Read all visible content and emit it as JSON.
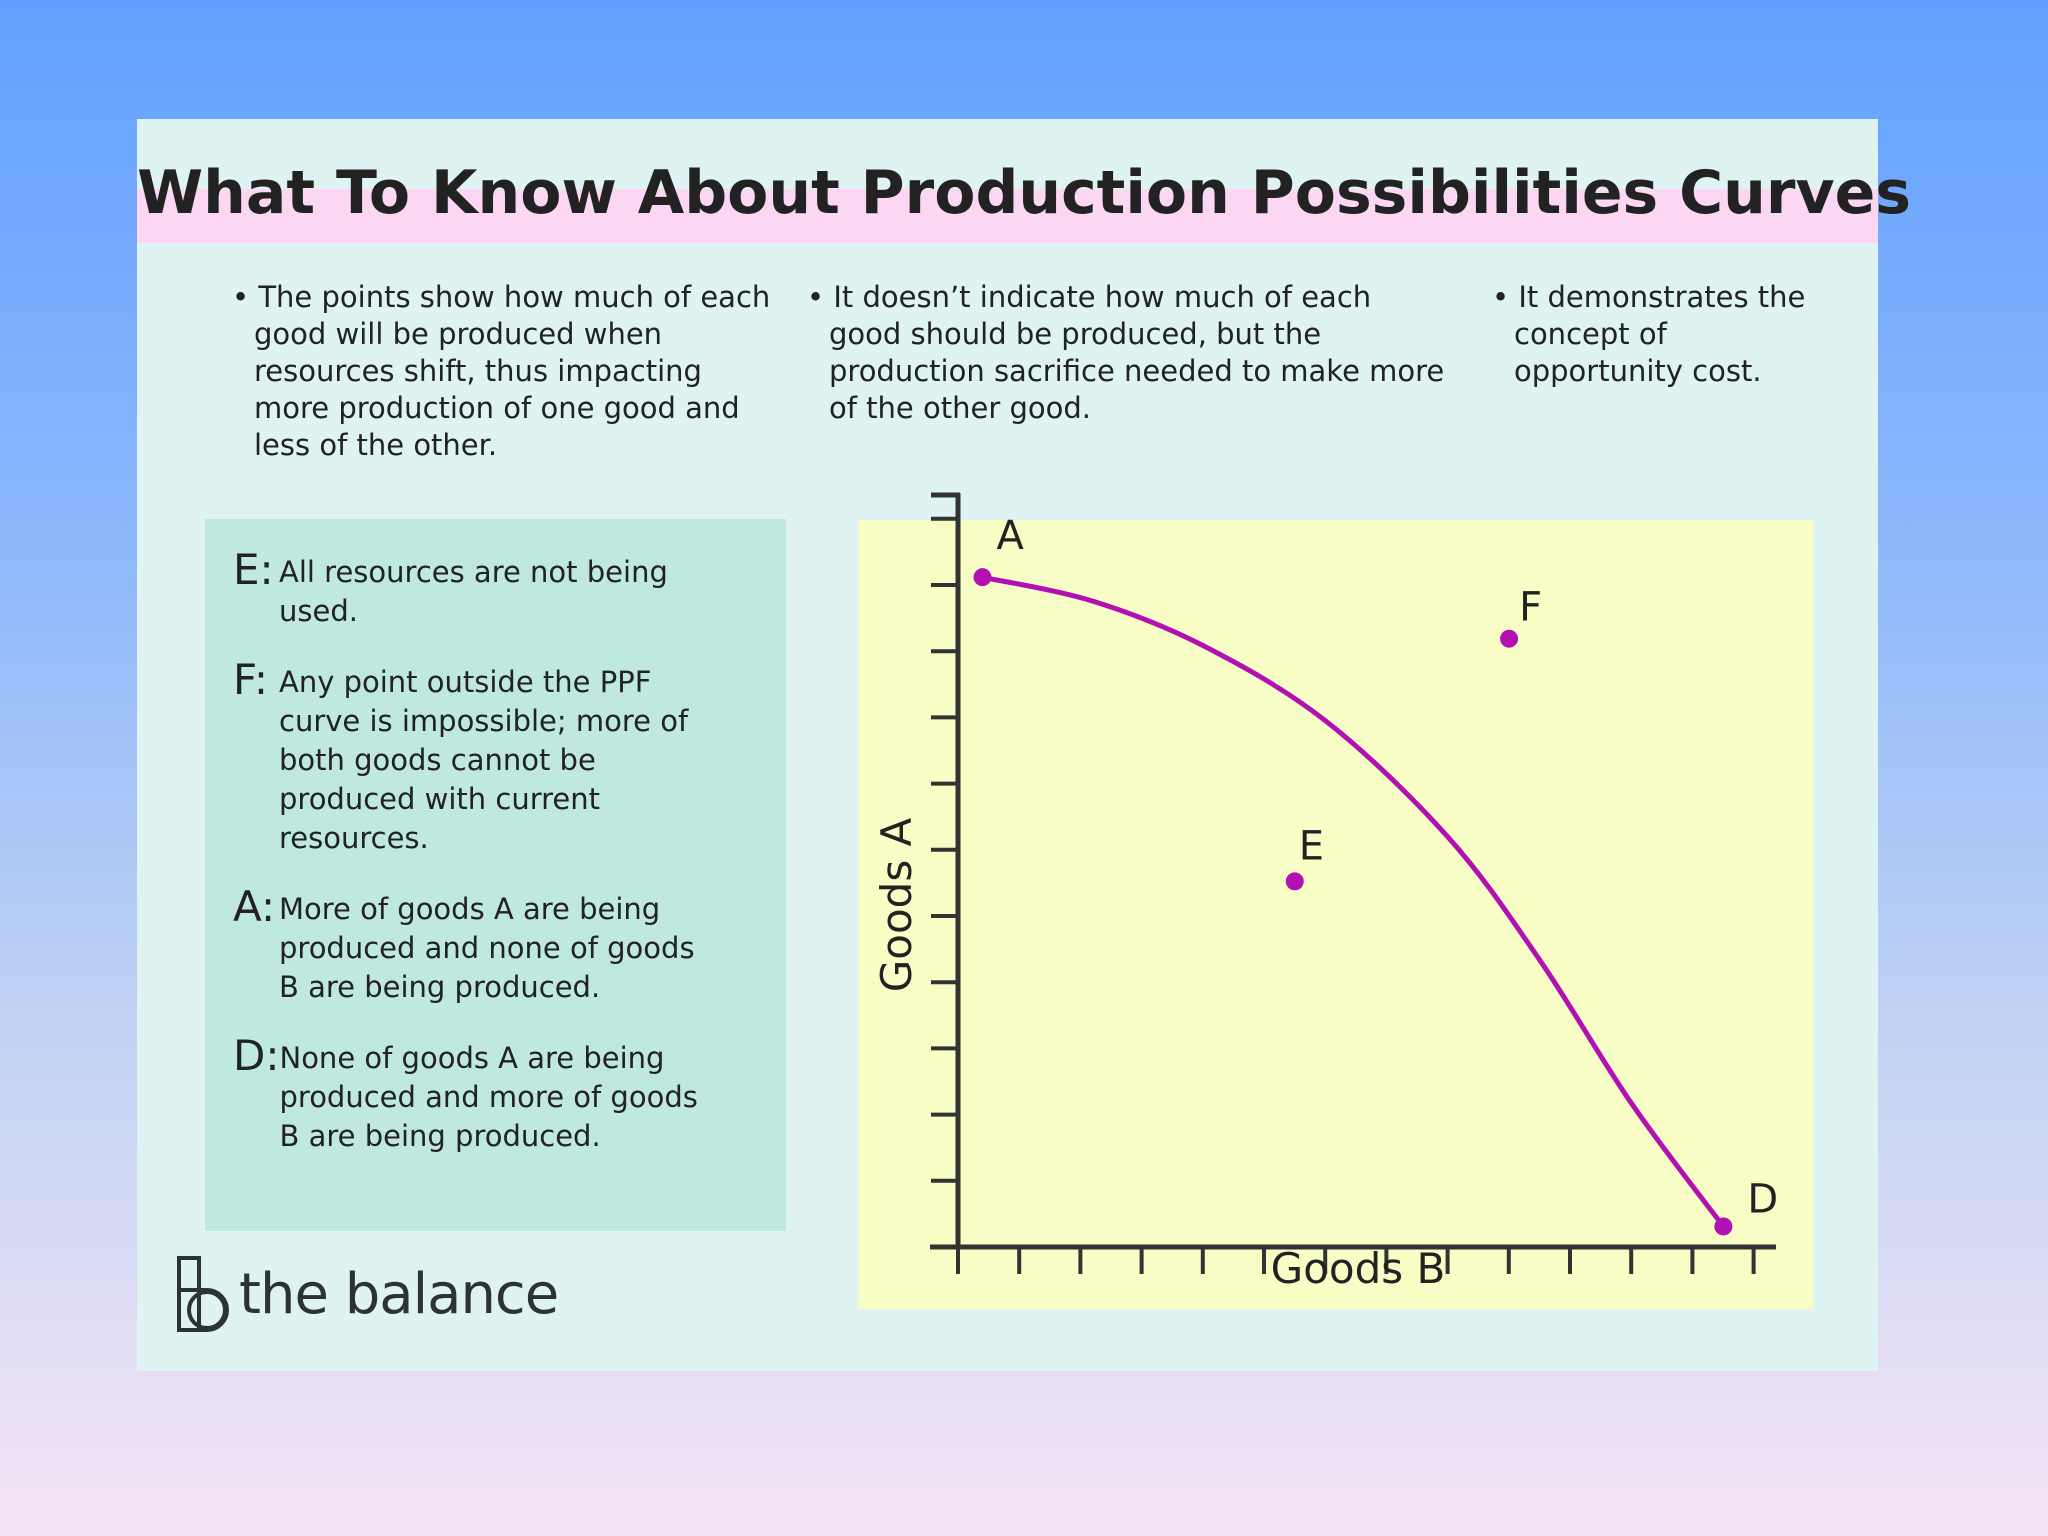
{
  "title": "What To Know About Production Possibilities Curves",
  "bullets": [
    "The points show how much of each good will be produced when resources shift, thus impacting more production of one good and less of the other.",
    "It doesn’t indicate how much of each good should be produced, but the production sacrifice needed to make more of the other good.",
    "It demonstrates the concept of opportunity cost."
  ],
  "legend": [
    {
      "key": "E:",
      "text": "All resources are not being used."
    },
    {
      "key": "F:",
      "text": "Any point outside the PPF curve is impossible; more of both goods cannot be produced with current resources."
    },
    {
      "key": "A:",
      "text": "More of goods A are being produced and none of goods B are being produced."
    },
    {
      "key": "D:",
      "text": "None of goods A are being produced and more of goods B are being produced."
    }
  ],
  "chart_data": {
    "type": "line",
    "xlabel": "Goods B",
    "ylabel": "Goods A",
    "xlim": [
      0,
      13
    ],
    "ylim": [
      0,
      10.9
    ],
    "grid": false,
    "x_ticks": 14,
    "y_ticks": 11,
    "curve_color": "#b210b2",
    "series": [
      {
        "points": [
          [
            0.4,
            9.8
          ],
          [
            2.2,
            9.45
          ],
          [
            4,
            8.8
          ],
          [
            6,
            7.7
          ],
          [
            8,
            6
          ],
          [
            9.5,
            4.2
          ],
          [
            11,
            2.1
          ],
          [
            12.5,
            0.3
          ]
        ]
      }
    ],
    "points": [
      {
        "label": "A",
        "x": 0.4,
        "y": 9.8
      },
      {
        "label": "F",
        "x": 9,
        "y": 8.9
      },
      {
        "label": "E",
        "x": 5.5,
        "y": 5.35
      },
      {
        "label": "D",
        "x": 12.5,
        "y": 0.3
      }
    ]
  },
  "logo": {
    "text": "the balance"
  },
  "colors": {
    "card": "#def3f2",
    "title_band": "#fbd7f3",
    "legend_box": "#bfe9e0",
    "chart_panel": "#f8fdc6",
    "curve": "#b210b2",
    "axis": "#333333"
  }
}
